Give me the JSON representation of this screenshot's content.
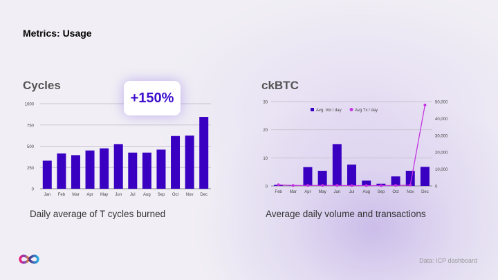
{
  "slide_title": "Metrics: Usage",
  "badge": "+150%",
  "source": "Data: ICP dashboard",
  "logo": "infinity-logo",
  "colors": {
    "bar": "#3a00c2",
    "line": "#c433e0",
    "grid": "#c8c4d0"
  },
  "chart_data": [
    {
      "type": "bar",
      "title": "Cycles",
      "caption": "Daily average of T cycles burned",
      "categories": [
        "Jan",
        "Feb",
        "Mar",
        "Apr",
        "May",
        "Jun",
        "Jul",
        "Aug",
        "Sep",
        "Oct",
        "Nov",
        "Dec"
      ],
      "values": [
        330,
        415,
        395,
        450,
        475,
        525,
        425,
        425,
        460,
        620,
        625,
        845
      ],
      "ylim": [
        0,
        1000
      ],
      "yticks": [
        "0",
        "250",
        "500",
        "750",
        "1000"
      ],
      "grid": true
    },
    {
      "type": "bar+line",
      "title": "ckBTC",
      "caption": "Average daily volume and transactions",
      "categories": [
        "Feb",
        "Mar",
        "Apr",
        "May",
        "Jun",
        "Jul",
        "Aug",
        "Sep",
        "Oct",
        "Nov",
        "Dec"
      ],
      "series": [
        {
          "name": "Avg. Vol / day",
          "type": "bar",
          "axis": "left",
          "values": [
            0.4,
            0.1,
            6.7,
            5.4,
            14.9,
            7.6,
            1.9,
            0.8,
            3.4,
            5.4,
            6.8
          ]
        },
        {
          "name": "Avg Tx / day",
          "type": "line",
          "axis": "right",
          "values": [
            700,
            300,
            300,
            300,
            300,
            200,
            200,
            200,
            300,
            500,
            48000
          ]
        }
      ],
      "ylim": [
        0,
        30
      ],
      "yticks": [
        "0",
        "10",
        "20",
        "30"
      ],
      "y2lim": [
        0,
        50000
      ],
      "y2ticks": [
        "0",
        "10,000",
        "20,000",
        "30,000",
        "40,000",
        "50,000"
      ],
      "legend": "top-center",
      "grid": true
    }
  ]
}
